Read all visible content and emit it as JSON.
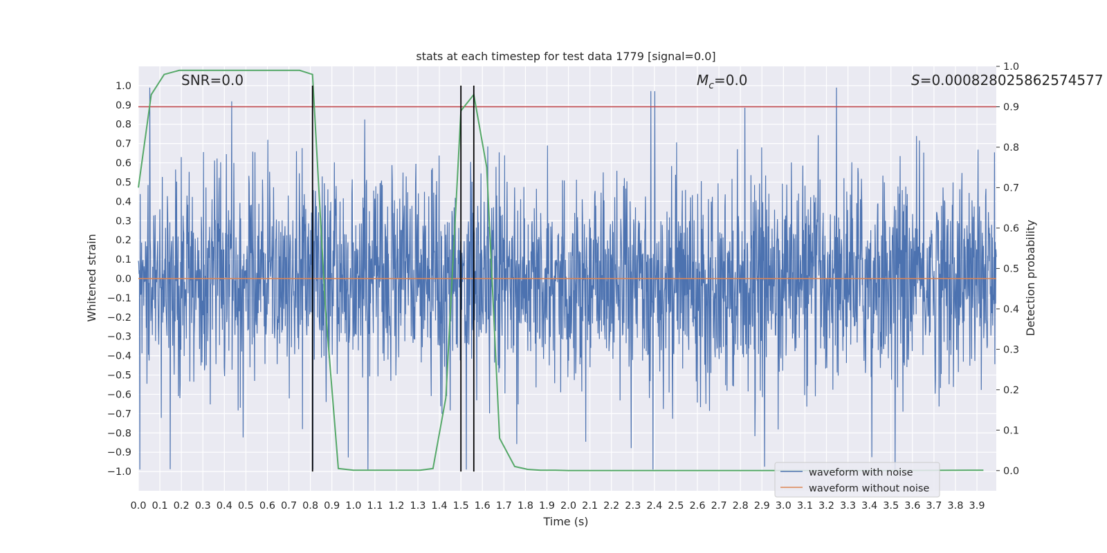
{
  "chart_data": {
    "type": "line",
    "title": "stats at each timestep for test data 1779 [signal=0.0]",
    "xlabel": "Time (s)",
    "ylabel": "Whitened strain",
    "ylabel_right": "Detection probability",
    "xlim": [
      0.0,
      3.99
    ],
    "ylim": [
      -1.1,
      1.1
    ],
    "ylim_right": [
      -0.05,
      1.0
    ],
    "x_ticks": [
      "0.0",
      "0.1",
      "0.2",
      "0.3",
      "0.4",
      "0.5",
      "0.6",
      "0.7",
      "0.8",
      "0.9",
      "1.0",
      "1.1",
      "1.2",
      "1.3",
      "1.4",
      "1.5",
      "1.6",
      "1.7",
      "1.8",
      "1.9",
      "2.0",
      "2.1",
      "2.2",
      "2.3",
      "2.4",
      "2.5",
      "2.6",
      "2.7",
      "2.8",
      "2.9",
      "3.0",
      "3.1",
      "3.2",
      "3.3",
      "3.4",
      "3.5",
      "3.6",
      "3.7",
      "3.8",
      "3.9"
    ],
    "y_ticks": [
      "1.0",
      "0.9",
      "0.8",
      "0.7",
      "0.6",
      "0.5",
      "0.4",
      "0.3",
      "0.2",
      "0.1",
      "0.0",
      "−0.1",
      "−0.2",
      "−0.3",
      "−0.4",
      "−0.5",
      "−0.6",
      "−0.7",
      "−0.8",
      "−0.9",
      "−1.0"
    ],
    "y_right_ticks": [
      "1.0",
      "0.9",
      "0.8",
      "0.7",
      "0.6",
      "0.5",
      "0.4",
      "0.3",
      "0.2",
      "0.1",
      "0.0"
    ],
    "annotations": {
      "snr": "SNR=0.0",
      "mc_symbol": "M",
      "mc_sub": "c",
      "mc_value": "=0.0",
      "s_symbol": "S",
      "s_value": "=0.000828025862574577"
    },
    "legend": {
      "placement": "lower-right",
      "entries": [
        "waveform with noise",
        "waveform without noise"
      ]
    },
    "series": [
      {
        "name": "waveform with noise",
        "color": "#4c72b0",
        "kind": "noise",
        "description_values": {
          "amplitude_range": [
            -1.0,
            1.0
          ]
        }
      },
      {
        "name": "waveform without noise",
        "color": "#dd8452",
        "kind": "flat",
        "y": 0.0
      },
      {
        "color": "#55a868",
        "axis": "right",
        "x": [
          0.0,
          0.06,
          0.12,
          0.19,
          0.25,
          0.31,
          0.38,
          0.44,
          0.5,
          0.56,
          0.62,
          0.69,
          0.75,
          0.81,
          0.87,
          0.93,
          1.0,
          1.06,
          1.12,
          1.18,
          1.25,
          1.31,
          1.37,
          1.43,
          1.5,
          1.56,
          1.62,
          1.68,
          1.75,
          1.81,
          1.87,
          1.94,
          2.0,
          2.5,
          3.0,
          3.5,
          3.93
        ],
        "y": [
          0.7,
          0.93,
          0.98,
          0.99,
          0.99,
          0.99,
          0.99,
          0.99,
          0.99,
          0.99,
          0.99,
          0.99,
          0.99,
          0.98,
          0.4,
          0.005,
          0.001,
          0.001,
          0.001,
          0.001,
          0.001,
          0.001,
          0.005,
          0.18,
          0.89,
          0.93,
          0.75,
          0.08,
          0.01,
          0.003,
          0.001,
          0.001,
          0.0,
          0.0,
          0.0,
          0.0,
          0.001
        ]
      }
    ],
    "threshold": {
      "color": "#c44e52",
      "y_right": 0.9
    },
    "vlines": {
      "color": "#000000",
      "x": [
        0.81,
        1.5,
        1.56
      ],
      "y_range": [
        -1.0,
        1.0
      ]
    }
  }
}
